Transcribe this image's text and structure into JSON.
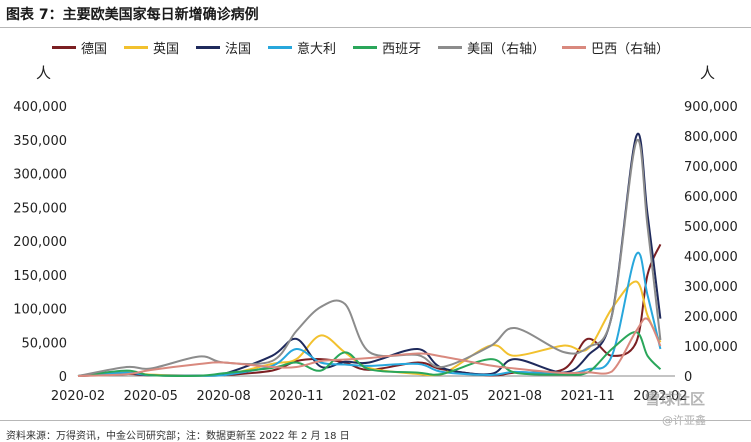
{
  "figure": {
    "title": "图表 7：主要欧美国家每日新增确诊病例",
    "source": "资料来源：万得资讯，中金公司研究部；注：数据更新至 2022 年 2 月 18 日",
    "watermark": "雪球社区",
    "watermark_sub": "@许亚鑫"
  },
  "axes": {
    "left_unit": "人",
    "right_unit": "人",
    "left_ticks": [
      "0",
      "50,000",
      "100,000",
      "150,000",
      "200,000",
      "250,000",
      "300,000",
      "350,000",
      "400,000"
    ],
    "right_ticks": [
      "0",
      "100,000",
      "200,000",
      "300,000",
      "400,000",
      "500,000",
      "600,000",
      "700,000",
      "800,000",
      "900,000"
    ],
    "x_ticks": [
      "2020-02",
      "2020-05",
      "2020-08",
      "2020-11",
      "2021-02",
      "2021-05",
      "2021-08",
      "2021-11",
      "2022-02"
    ]
  },
  "chart_data": {
    "type": "line",
    "title": "图表 7：主要欧美国家每日新增确诊病例",
    "xlabel": "",
    "ylabel": "人",
    "y2label": "人",
    "ylim": [
      0,
      400000
    ],
    "y2lim": [
      0,
      900000
    ],
    "x": [
      "2020-02",
      "2020-04",
      "2020-05",
      "2020-07",
      "2020-08",
      "2020-10",
      "2020-11",
      "2020-12",
      "2021-01",
      "2021-02",
      "2021-04",
      "2021-05",
      "2021-07",
      "2021-08",
      "2021-10",
      "2021-11",
      "2021-12",
      "2022-01",
      "2022-01-15",
      "2022-02"
    ],
    "legend_position": "top",
    "series": [
      {
        "name": "德国",
        "axis": "left",
        "color": "#7b1f22",
        "values": [
          0,
          3000,
          1000,
          800,
          1200,
          8000,
          22000,
          25000,
          20000,
          9000,
          20000,
          10000,
          800,
          5000,
          10000,
          55000,
          30000,
          50000,
          150000,
          195000
        ]
      },
      {
        "name": "英国",
        "axis": "left",
        "color": "#f2c12e",
        "values": [
          0,
          5000,
          2000,
          600,
          1200,
          18000,
          25000,
          60000,
          35000,
          12000,
          3000,
          2500,
          45000,
          30000,
          45000,
          40000,
          100000,
          140000,
          90000,
          50000
        ]
      },
      {
        "name": "法国",
        "axis": "left",
        "color": "#1f2a5c",
        "values": [
          0,
          4000,
          1000,
          600,
          3000,
          30000,
          55000,
          14000,
          21000,
          20000,
          40000,
          12000,
          3000,
          25000,
          5000,
          30000,
          90000,
          355000,
          240000,
          85000
        ]
      },
      {
        "name": "意大利",
        "axis": "left",
        "color": "#28a7dc",
        "values": [
          0,
          5000,
          1000,
          300,
          1200,
          15000,
          40000,
          20000,
          17000,
          15000,
          18000,
          6000,
          1500,
          6000,
          3000,
          10000,
          30000,
          180000,
          120000,
          40000
        ]
      },
      {
        "name": "西班牙",
        "axis": "left",
        "color": "#2aa65a",
        "values": [
          0,
          8000,
          1000,
          500,
          4000,
          12000,
          20000,
          8000,
          35000,
          10000,
          5000,
          3000,
          25000,
          5000,
          2000,
          5000,
          40000,
          65000,
          30000,
          10000
        ]
      },
      {
        "name": "美国（右轴）",
        "axis": "right",
        "color": "#8c8c8c",
        "values": [
          0,
          30000,
          25000,
          65000,
          45000,
          50000,
          150000,
          230000,
          240000,
          80000,
          70000,
          30000,
          100000,
          160000,
          80000,
          95000,
          200000,
          780000,
          500000,
          120000
        ]
      },
      {
        "name": "巴西（右轴）",
        "axis": "right",
        "color": "#d9897e",
        "values": [
          0,
          6000,
          20000,
          40000,
          45000,
          30000,
          30000,
          50000,
          55000,
          60000,
          75000,
          65000,
          35000,
          25000,
          10000,
          12000,
          15000,
          150000,
          190000,
          100000
        ]
      }
    ]
  }
}
